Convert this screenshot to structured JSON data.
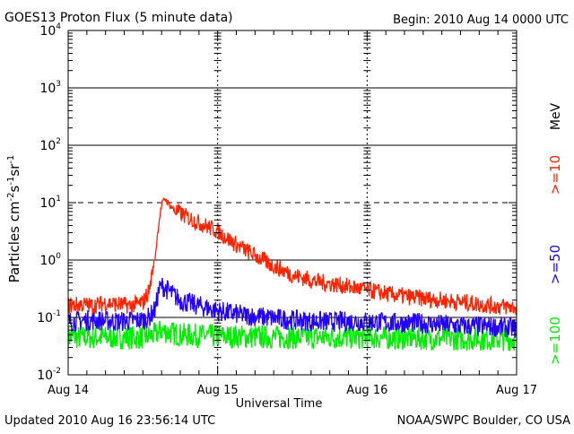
{
  "header": {
    "title": "GOES13 Proton Flux (5 minute data)",
    "begin": "Begin: 2010 Aug 14 0000 UTC"
  },
  "footer": {
    "updated": "Updated 2010 Aug 16 23:56:14 UTC",
    "credit": "NOAA/SWPC Boulder, CO USA"
  },
  "chart_data": {
    "type": "line",
    "title": "GOES13 Proton Flux (5 minute data)",
    "xlabel": "Universal Time",
    "ylabel": "Particles cm-2s-1sr-1",
    "y_scale": "log",
    "ylim": [
      0.01,
      10000
    ],
    "y_ticks": [
      0.01,
      0.1,
      1,
      10,
      100,
      1000,
      10000
    ],
    "y_tick_labels": [
      {
        "base": "10",
        "exp": "-2"
      },
      {
        "base": "10",
        "exp": "-1"
      },
      {
        "base": "10",
        "exp": "0"
      },
      {
        "base": "10",
        "exp": "1"
      },
      {
        "base": "10",
        "exp": "2"
      },
      {
        "base": "10",
        "exp": "3"
      },
      {
        "base": "10",
        "exp": "4"
      }
    ],
    "x_unit": "hours since 2010 Aug 14 0000 UTC",
    "xlim": [
      0,
      72
    ],
    "x_ticks": [
      0,
      24,
      48,
      72
    ],
    "x_tick_labels": [
      "Aug 14",
      "Aug 15",
      "Aug 16",
      "Aug 17"
    ],
    "grid": {
      "solid_levels": [
        0.1,
        1,
        100,
        1000
      ],
      "dashed_levels": [
        10
      ]
    },
    "right_labels": {
      "unit": "MeV",
      "items": [
        {
          "text": ">=10",
          "color": "#ff2200"
        },
        {
          "text": ">=50",
          "color": "#2200ff"
        },
        {
          "text": ">=100",
          "color": "#00ee00"
        }
      ]
    },
    "series": [
      {
        "name": ">=10",
        "color": "#ff2200",
        "x": [
          0,
          2,
          4,
          6,
          8,
          10,
          12,
          13,
          14,
          14.5,
          15,
          15.5,
          16,
          17,
          18,
          20,
          22,
          24,
          26,
          28,
          30,
          32,
          34,
          36,
          40,
          44,
          48,
          52,
          56,
          60,
          64,
          68,
          72
        ],
        "y": [
          0.16,
          0.17,
          0.16,
          0.18,
          0.17,
          0.16,
          0.18,
          0.3,
          1.2,
          4,
          9,
          12,
          10,
          7.5,
          6.5,
          5,
          4,
          3.2,
          2.2,
          1.6,
          1.2,
          0.9,
          0.7,
          0.55,
          0.42,
          0.36,
          0.3,
          0.25,
          0.22,
          0.2,
          0.18,
          0.16,
          0.15
        ]
      },
      {
        "name": ">=50",
        "color": "#2200ff",
        "x": [
          0,
          4,
          8,
          12,
          13,
          14,
          14.5,
          15,
          16,
          17,
          18,
          20,
          22,
          24,
          28,
          32,
          36,
          40,
          44,
          48,
          52,
          56,
          60,
          64,
          68,
          72
        ],
        "y": [
          0.085,
          0.09,
          0.085,
          0.09,
          0.1,
          0.14,
          0.28,
          0.36,
          0.3,
          0.24,
          0.2,
          0.17,
          0.15,
          0.13,
          0.11,
          0.1,
          0.09,
          0.085,
          0.085,
          0.085,
          0.08,
          0.08,
          0.075,
          0.07,
          0.07,
          0.065
        ]
      },
      {
        "name": ">=100",
        "color": "#00ee00",
        "x": [
          0,
          12,
          14,
          15,
          16,
          18,
          24,
          36,
          48,
          60,
          72
        ],
        "y": [
          0.045,
          0.045,
          0.05,
          0.06,
          0.055,
          0.05,
          0.047,
          0.045,
          0.045,
          0.043,
          0.042
        ]
      }
    ]
  }
}
